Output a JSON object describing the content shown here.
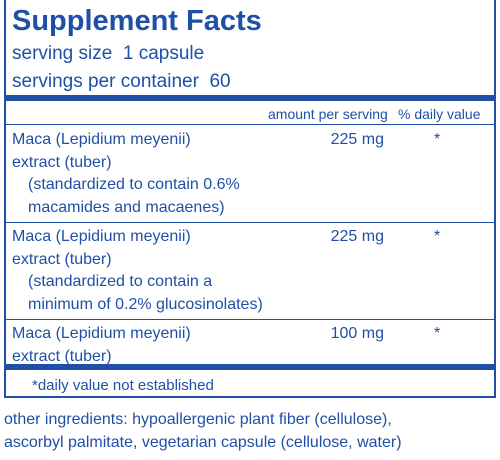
{
  "header": {
    "title": "Supplement Facts",
    "serving_size": "serving size  1 capsule",
    "servings_per_container": "servings per container  60"
  },
  "columns": [
    "amount per serving",
    "% daily value"
  ],
  "rows": [
    {
      "name": [
        "Maca (Lepidium meyenii)",
        "extract (tuber)"
      ],
      "note": [
        "(standardized to contain 0.6%",
        "macamides and macaenes)"
      ],
      "amount": "225 mg",
      "daily_value": "*"
    },
    {
      "name": [
        "Maca (Lepidium meyenii)",
        "extract (tuber)"
      ],
      "note": [
        "(standardized to contain a",
        "minimum of 0.2% glucosinolates)"
      ],
      "amount": "225 mg",
      "daily_value": "*"
    },
    {
      "name": [
        "Maca (Lepidium meyenii)",
        "extract (tuber)"
      ],
      "note": [],
      "amount": "100 mg",
      "daily_value": "*"
    }
  ],
  "footnote": "*daily value not established",
  "other_ingredients": [
    "other ingredients: hypoallergenic plant fiber (cellulose),",
    "ascorbyl palmitate, vegetarian capsule (cellulose, water)"
  ]
}
